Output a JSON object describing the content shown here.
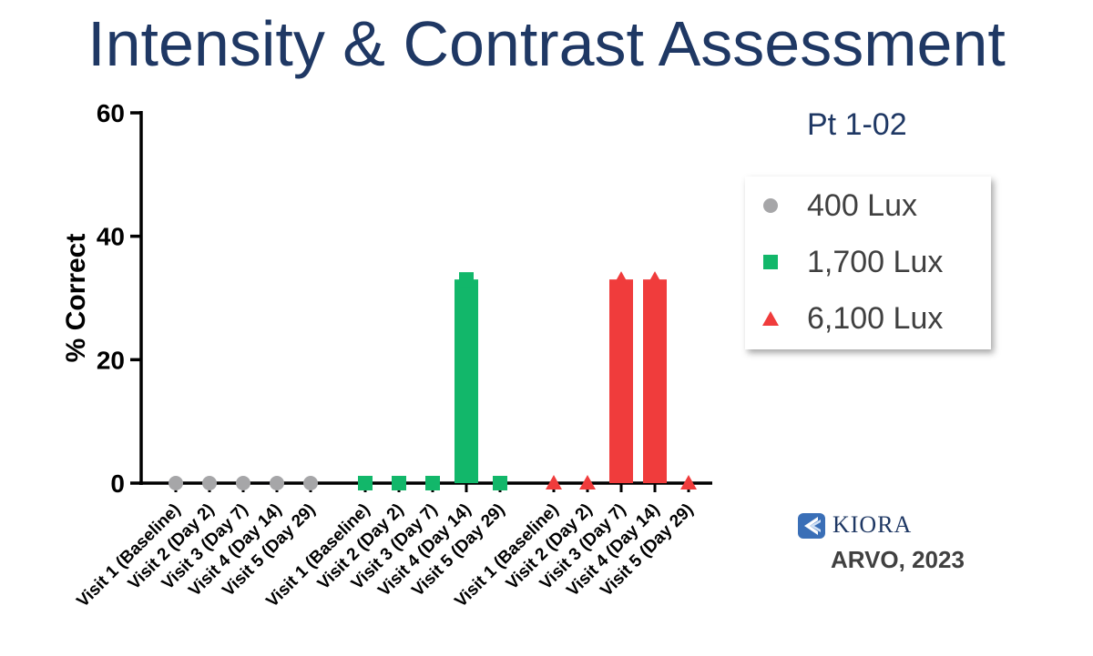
{
  "slide": {
    "title": "Intensity & Contrast Assessment",
    "subtitle": "Pt 1-02",
    "logo_text": "KIORA",
    "footnote": "ARVO, 2023"
  },
  "chart_data": {
    "type": "bar",
    "title": "",
    "ylabel": "% Correct",
    "xlabel": "",
    "ylim": [
      0,
      60
    ],
    "yticks": [
      0,
      20,
      40,
      60
    ],
    "grid": false,
    "legend_placement": "right",
    "categories": [
      "Visit 1 (Baseline)",
      "Visit 2 (Day 2)",
      "Visit 3 (Day 7)",
      "Visit 4 (Day 14)",
      "Visit 5 (Day 29)"
    ],
    "series": [
      {
        "name": "400 Lux",
        "color": "#a6a6a8",
        "marker": "circle",
        "values": [
          0,
          0,
          0,
          0,
          0
        ]
      },
      {
        "name": "1,700 Lux",
        "color": "#12b76a",
        "marker": "square",
        "values": [
          0,
          0,
          0,
          33,
          0
        ]
      },
      {
        "name": "6,100 Lux",
        "color": "#f03c3c",
        "marker": "triangle",
        "values": [
          0,
          0,
          33,
          33,
          0
        ]
      }
    ]
  }
}
